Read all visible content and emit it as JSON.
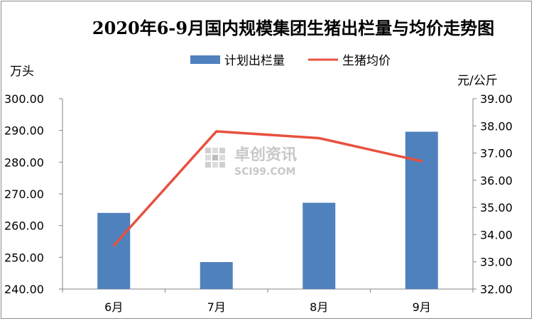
{
  "chart_data": {
    "type": "bar",
    "title": "2020年6-9月国内规模集团生猪出栏量与均价走势图",
    "categories": [
      "6月",
      "7月",
      "8月",
      "9月"
    ],
    "series": [
      {
        "name": "计划出栏量",
        "type": "bar",
        "axis": "left",
        "color": "#4f81bd",
        "values": [
          264.0,
          248.5,
          267.2,
          289.6
        ]
      },
      {
        "name": "生猪均价",
        "type": "line",
        "axis": "right",
        "color": "#e8513f",
        "values": [
          33.6,
          37.8,
          37.55,
          36.7
        ]
      }
    ],
    "y_left": {
      "unit": "万头",
      "min": 240,
      "max": 300,
      "step": 10,
      "ticks": [
        "240.00",
        "250.00",
        "260.00",
        "270.00",
        "280.00",
        "290.00",
        "300.00"
      ]
    },
    "y_right": {
      "unit": "元/公斤",
      "min": 32,
      "max": 39,
      "step": 1,
      "ticks": [
        "32.00",
        "33.00",
        "34.00",
        "35.00",
        "36.00",
        "37.00",
        "38.00",
        "39.00"
      ]
    },
    "legend_position": "top",
    "grid": false
  },
  "watermark": {
    "cn": "卓创资讯",
    "en": "SCI99.COM"
  }
}
